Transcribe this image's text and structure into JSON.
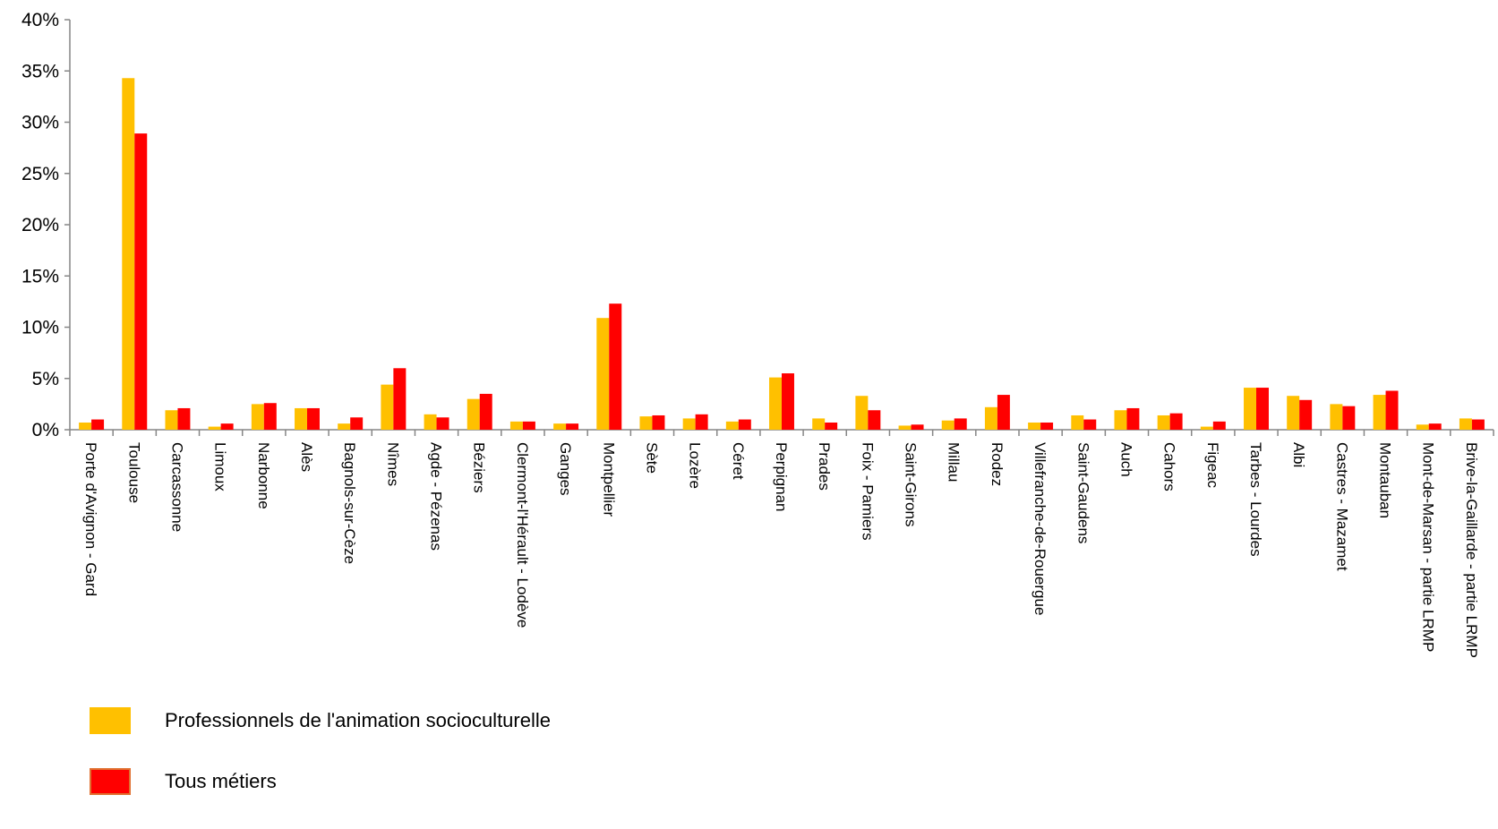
{
  "chart_data": {
    "type": "bar",
    "title": "",
    "xlabel": "",
    "ylabel": "",
    "ylim": [
      0,
      40
    ],
    "yticks": [
      "0%",
      "5%",
      "10%",
      "15%",
      "20%",
      "25%",
      "30%",
      "35%",
      "40%"
    ],
    "grid": false,
    "legend_position": "bottom-left",
    "categories": [
      "Porte d'Avignon - Gard",
      "Toulouse",
      "Carcassonne",
      "Limoux",
      "Narbonne",
      "Alès",
      "Bagnols-sur-Cèze",
      "Nîmes",
      "Agde - Pézenas",
      "Béziers",
      "Clermont-l'Hérault - Lodève",
      "Ganges",
      "Montpellier",
      "Sète",
      "Lozère",
      "Céret",
      "Perpignan",
      "Prades",
      "Foix - Pamiers",
      "Saint-Girons",
      "Millau",
      "Rodez",
      "Villefranche-de-Rouergue",
      "Saint-Gaudens",
      "Auch",
      "Cahors",
      "Figeac",
      "Tarbes - Lourdes",
      "Albi",
      "Castres - Mazamet",
      "Montauban",
      "Mont-de-Marsan - partie LRMP",
      "Brive-la-Gaillarde - partie LRMP"
    ],
    "series": [
      {
        "name": "Professionnels de l'animation socioculturelle",
        "color": "#FFC000",
        "values": [
          0.7,
          34.3,
          1.9,
          0.3,
          2.5,
          2.1,
          0.6,
          4.4,
          1.5,
          3.0,
          0.8,
          0.6,
          10.9,
          1.3,
          1.1,
          0.8,
          5.1,
          1.1,
          3.3,
          0.4,
          0.9,
          2.2,
          0.7,
          1.4,
          1.9,
          1.4,
          0.3,
          4.1,
          3.3,
          2.5,
          3.4,
          0.5,
          1.1
        ]
      },
      {
        "name": "Tous métiers",
        "color": "#FF0000",
        "values": [
          1.0,
          28.9,
          2.1,
          0.6,
          2.6,
          2.1,
          1.2,
          6.0,
          1.2,
          3.5,
          0.8,
          0.6,
          12.3,
          1.4,
          1.5,
          1.0,
          5.5,
          0.7,
          1.9,
          0.5,
          1.1,
          3.4,
          0.7,
          1.0,
          2.1,
          1.6,
          0.8,
          4.1,
          2.9,
          2.3,
          3.8,
          0.6,
          1.0
        ]
      }
    ]
  },
  "legend": {
    "items": [
      {
        "label": "Professionnels de l'animation socioculturelle",
        "color": "#FFC000"
      },
      {
        "label": "Tous métiers",
        "color": "#FF0000"
      }
    ]
  }
}
